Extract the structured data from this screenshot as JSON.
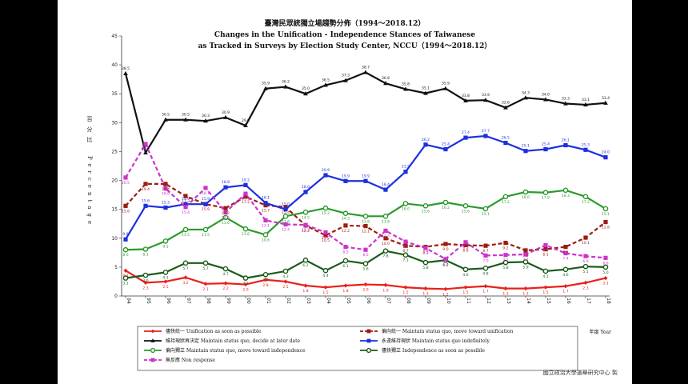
{
  "chart_data": {
    "type": "line",
    "title": "臺灣民眾統獨立場趨勢分佈（1994～2018.12）",
    "subtitle_line1": "Changes in the Unification - Independence Stances of Taiwanese",
    "subtitle_line2": "as Tracked in Surveys by Election Study Center, NCCU（1994～2018.12）",
    "ylabel_zh": "百分比",
    "ylabel_en": "Percentage",
    "xlabel": "年度 Year",
    "ylim": [
      0,
      45
    ],
    "yticks": [
      0,
      5,
      10,
      15,
      20,
      25,
      30,
      35,
      40,
      45
    ],
    "x": [
      "94",
      "95",
      "96",
      "97",
      "98",
      "99",
      "00",
      "01",
      "02",
      "03",
      "04",
      "05",
      "06",
      "07",
      "08",
      "09",
      "10",
      "11",
      "12",
      "13",
      "14",
      "15",
      "16",
      "17",
      "18"
    ],
    "grid": false,
    "legend_position": "bottom",
    "series": [
      {
        "name": "儘快統一 Unification as soon as possible",
        "color": "#e8201a",
        "marker": "diamond",
        "dash": false,
        "values": [
          4.4,
          2.3,
          2.5,
          3.2,
          2.1,
          2.2,
          2.0,
          2.8,
          2.5,
          1.8,
          1.5,
          1.8,
          2.0,
          1.9,
          1.5,
          1.3,
          1.2,
          1.5,
          1.7,
          1.3,
          1.3,
          1.5,
          1.7,
          2.3,
          3.1
        ]
      },
      {
        "name": "偏向統一 Maintain status quo, move toward unification",
        "color": "#9b1c10",
        "marker": "square",
        "dash": true,
        "values": [
          15.6,
          19.4,
          19.4,
          17.3,
          15.9,
          15.2,
          17.2,
          15.7,
          15.4,
          12.2,
          10.5,
          12.2,
          12.1,
          10.0,
          8.7,
          8.5,
          9.0,
          8.8,
          8.7,
          9.2,
          7.9,
          8.1,
          8.5,
          10.1,
          12.8
        ]
      },
      {
        "name": "維持現狀再決定 Maintain status quo, decide at later date",
        "color": "#111111",
        "marker": "triangle",
        "dash": false,
        "values": [
          38.5,
          24.8,
          30.5,
          30.5,
          30.3,
          30.9,
          29.5,
          35.9,
          36.2,
          35.0,
          36.5,
          37.3,
          38.7,
          36.8,
          35.8,
          35.1,
          35.9,
          33.8,
          33.9,
          32.6,
          34.3,
          34.0,
          33.3,
          33.1,
          33.4
        ]
      },
      {
        "name": "永遠維持現狀 Maintain status quo indefinitely",
        "color": "#1d2fe0",
        "marker": "square",
        "dash": false,
        "values": [
          9.8,
          15.6,
          15.3,
          15.9,
          15.9,
          18.8,
          19.2,
          16.1,
          15.0,
          18.0,
          20.9,
          19.9,
          19.9,
          18.4,
          21.5,
          26.2,
          25.4,
          27.4,
          27.7,
          26.5,
          25.1,
          25.4,
          26.1,
          25.3,
          24.0
        ]
      },
      {
        "name": "偏向獨立 Maintain status quo, move toward independence",
        "color": "#2c9a2c",
        "marker": "circle",
        "dash": false,
        "values": [
          8.0,
          8.1,
          9.5,
          11.5,
          11.5,
          13.6,
          11.6,
          10.6,
          13.8,
          14.5,
          15.2,
          14.3,
          13.8,
          13.8,
          16.0,
          15.6,
          16.2,
          15.6,
          15.1,
          17.2,
          18.0,
          17.9,
          18.3,
          17.2,
          15.1
        ]
      },
      {
        "name": "儘快獨立 Independence as soon as possible",
        "color": "#1a5c1a",
        "marker": "circle",
        "dash": false,
        "values": [
          3.1,
          3.6,
          4.1,
          5.7,
          5.7,
          4.7,
          3.1,
          3.7,
          4.3,
          6.2,
          4.4,
          6.1,
          5.6,
          7.8,
          7.1,
          5.8,
          6.2,
          4.6,
          4.8,
          5.8,
          5.9,
          4.3,
          4.6,
          5.1,
          5.0
        ]
      },
      {
        "name": "無反應 Non response",
        "color": "#cc33cc",
        "marker": "square",
        "dash": true,
        "values": [
          20.5,
          26.3,
          18.6,
          15.4,
          18.7,
          14.5,
          17.7,
          13.1,
          12.4,
          12.3,
          11.0,
          8.5,
          8.0,
          11.3,
          9.4,
          8.3,
          6.4,
          9.3,
          7.0,
          7.1,
          7.2,
          8.8,
          7.4,
          6.9,
          6.6
        ]
      }
    ]
  },
  "credit": "國立政治大學選舉研究中心 製"
}
